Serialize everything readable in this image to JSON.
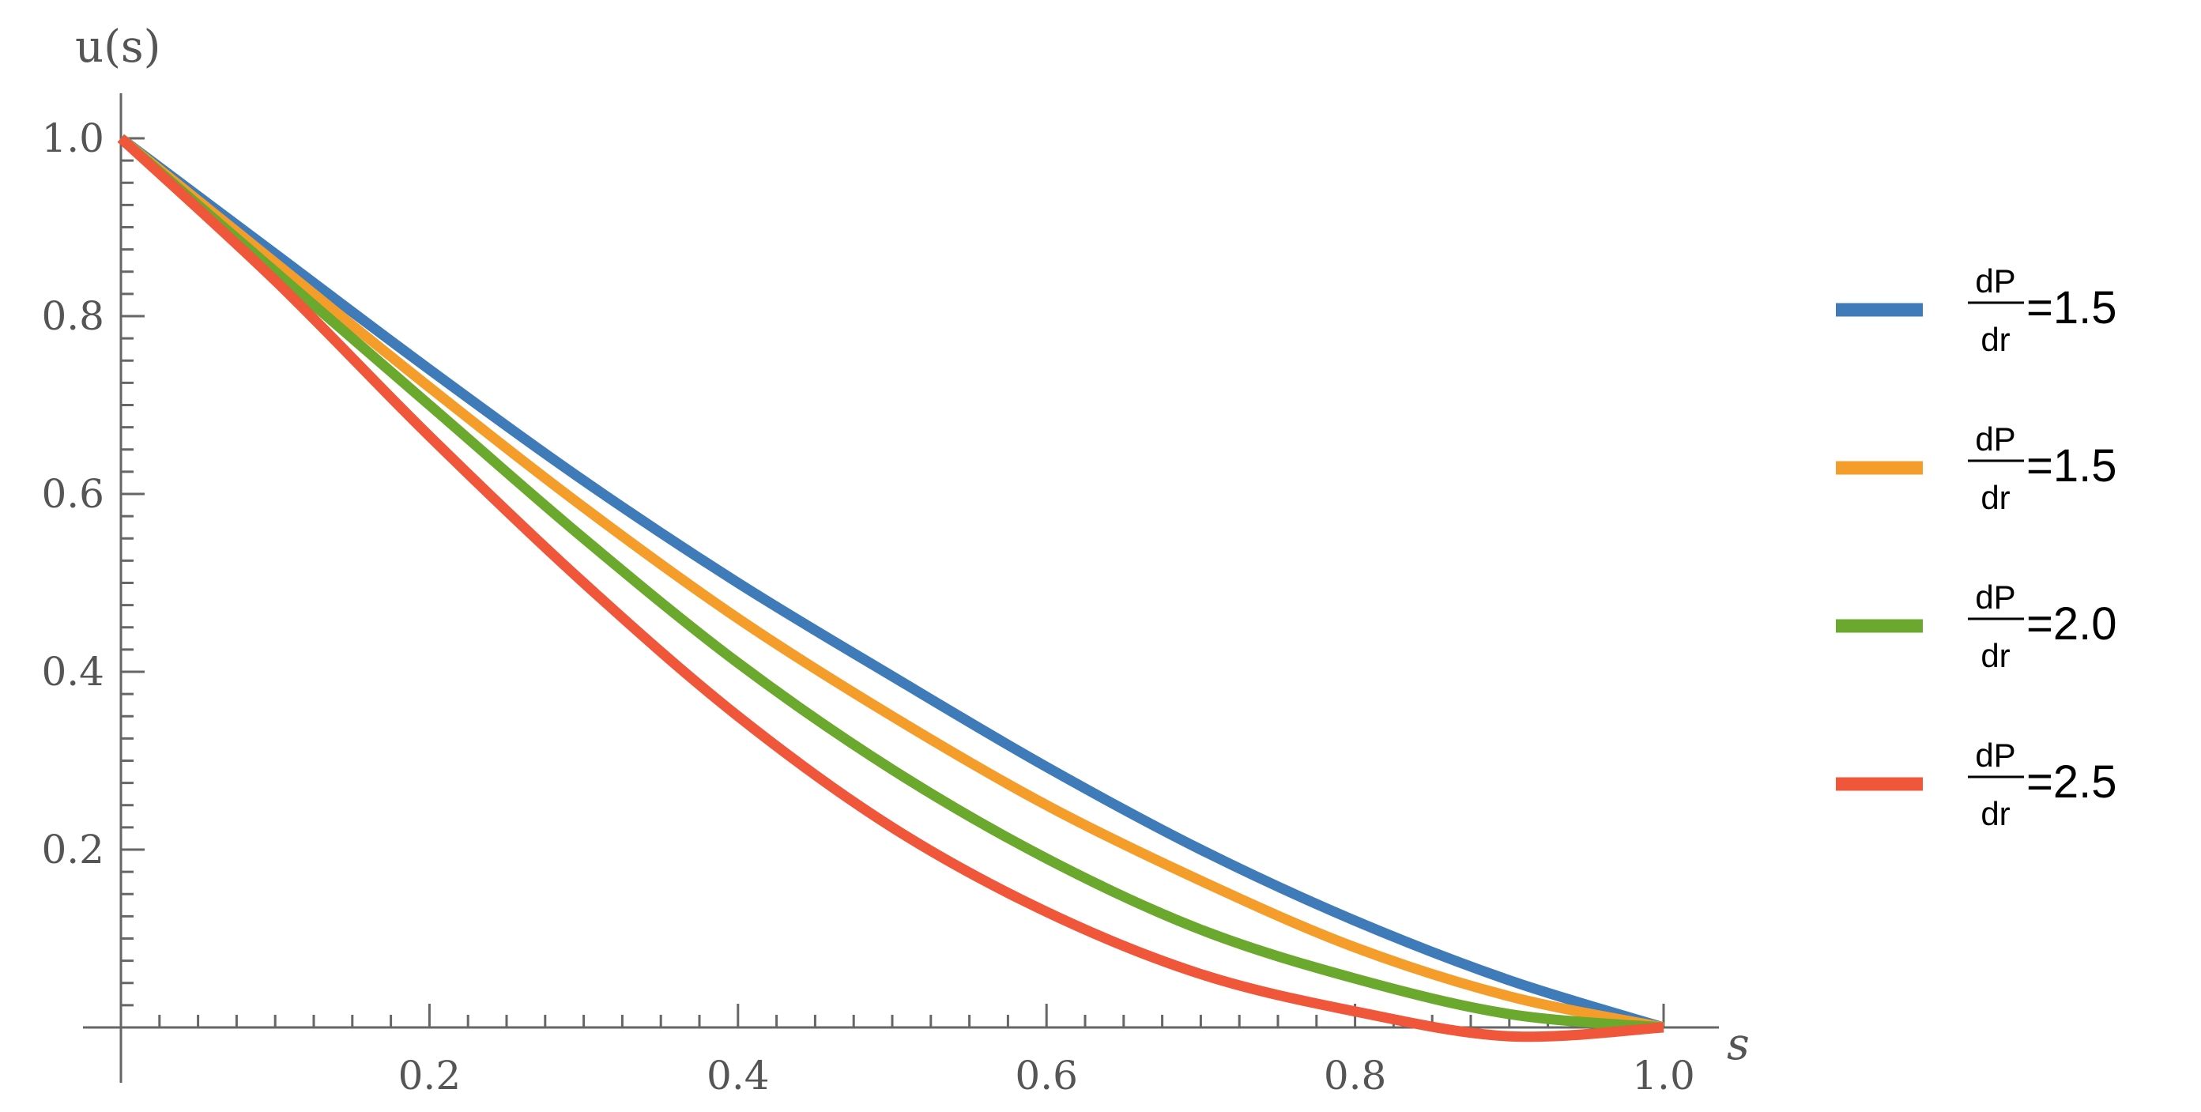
{
  "chart_data": {
    "type": "line",
    "xlabel": "s",
    "ylabel": "u(s)",
    "xlim": [
      0,
      1.0
    ],
    "ylim": [
      0,
      1.0
    ],
    "x_ticks": [
      "0.2",
      "0.4",
      "0.6",
      "0.8",
      "1.0"
    ],
    "y_ticks": [
      "0.2",
      "0.4",
      "0.6",
      "0.8",
      "1.0"
    ],
    "grid": false,
    "legend_position": "right",
    "x": [
      0,
      0.1,
      0.2,
      0.3,
      0.4,
      0.5,
      0.6,
      0.7,
      0.8,
      0.9,
      1.0
    ],
    "series": [
      {
        "legend_num": "dP",
        "legend_den": "dr",
        "legend_value": "=1.5",
        "color": "#3f7bb8",
        "values": [
          1.0,
          0.87,
          0.74,
          0.615,
          0.5,
          0.395,
          0.293,
          0.2,
          0.12,
          0.053,
          0.0
        ]
      },
      {
        "legend_num": "dP",
        "legend_den": "dr",
        "legend_value": "=1.5",
        "color": "#f59d2b",
        "values": [
          1.0,
          0.86,
          0.72,
          0.585,
          0.46,
          0.35,
          0.25,
          0.165,
          0.09,
          0.035,
          0.0
        ]
      },
      {
        "legend_num": "dP",
        "legend_den": "dr",
        "legend_value": "=2.0",
        "color": "#6aa82e",
        "values": [
          1.0,
          0.85,
          0.7,
          0.55,
          0.41,
          0.29,
          0.19,
          0.11,
          0.055,
          0.015,
          0.0
        ]
      },
      {
        "legend_num": "dP",
        "legend_den": "dr",
        "legend_value": "=2.5",
        "color": "#f0563a",
        "values": [
          1.0,
          0.84,
          0.665,
          0.5,
          0.35,
          0.225,
          0.13,
          0.06,
          0.018,
          -0.01,
          0.0
        ]
      }
    ]
  }
}
